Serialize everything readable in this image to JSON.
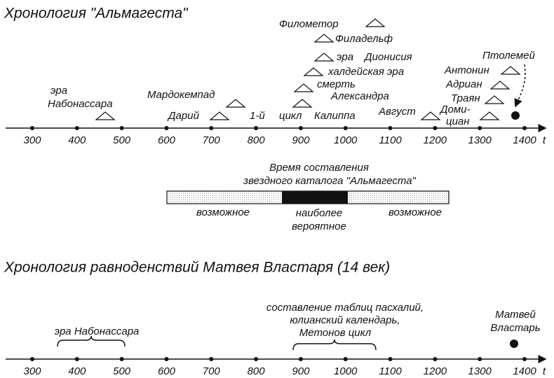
{
  "top_timeline": {
    "title": "Хронология \"Альмагеста\"",
    "ticks": [
      300,
      400,
      500,
      600,
      700,
      800,
      900,
      1000,
      1100,
      1200,
      1300,
      1400
    ],
    "axis_label": "t",
    "labels": [
      "эра",
      "Набонассара",
      "Мардокемпад",
      "Дарий",
      "1-й",
      "цикл",
      "Калиппа",
      "Филометор",
      "Филадельф",
      "эра",
      "Дионисия",
      "халдейская эра",
      "смерть",
      "Александра",
      "Август",
      "Птолемей",
      "Антонин",
      "Адриан",
      "Траян",
      "Доми-",
      "циан"
    ]
  },
  "catalog": {
    "title": [
      "Время составления",
      "звездного каталога \"Альмагеста\""
    ],
    "possible_left": "возможное",
    "most_probable": [
      "наиболее",
      "вероятное"
    ],
    "possible_right": "возможное"
  },
  "bottom_timeline": {
    "title": "Хронология равноденствий Матвея Властаря (14 век)",
    "ticks": [
      300,
      400,
      500,
      600,
      700,
      800,
      900,
      1000,
      1100,
      1200,
      1300,
      1400
    ],
    "axis_label": "t",
    "era": "эра Набонассара",
    "tables": [
      "составление таблиц пасхалий,",
      "юлианский календарь,",
      "Метонов цикл"
    ],
    "vlastar": [
      "Матвей",
      "Властарь"
    ]
  }
}
